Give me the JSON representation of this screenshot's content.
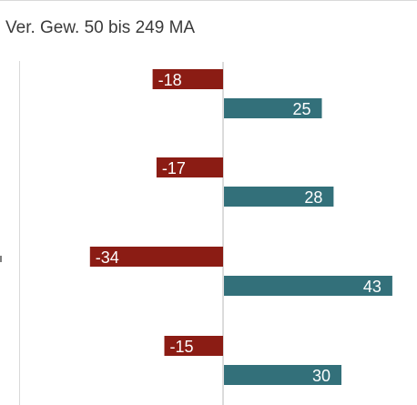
{
  "panel": {
    "title": "Ver. Gew. 50 bis 249 MA"
  },
  "colors": {
    "negative": "#8b1c14",
    "positive": "#33707a",
    "axis": "#d0d0d0"
  },
  "chart_data": {
    "type": "bar",
    "orientation": "horizontal",
    "title": "Ver. Gew. 50 bis 249 MA",
    "categories": [
      "",
      "",
      "",
      ""
    ],
    "series": [
      {
        "values": [
          -18,
          -17,
          -34,
          -15
        ]
      },
      {
        "values": [
          25,
          28,
          43,
          30
        ]
      }
    ],
    "data_labels": true,
    "grid": false
  }
}
